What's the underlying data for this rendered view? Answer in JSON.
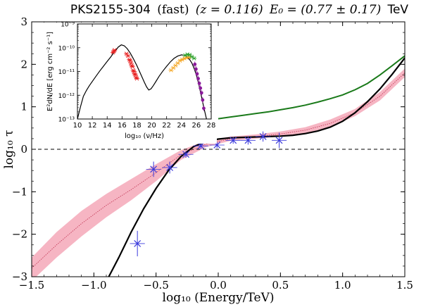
{
  "title": {
    "source": "PKS2155-304",
    "mode": "(fast)",
    "redshift": "(z = 0.116)",
    "e0": "E₀ = (0.77 ± 0.17)",
    "unit": "TeV"
  },
  "chart_data": [
    {
      "type": "line",
      "xlabel": "log₁₀ (Energy/TeV)",
      "ylabel": "log₁₀ τ",
      "xlim": [
        -1.5,
        1.5
      ],
      "ylim": [
        -3,
        3
      ],
      "xticks": [
        -1.5,
        -1.0,
        -0.5,
        0.0,
        0.5,
        1.0,
        1.5
      ],
      "xtick_labels": [
        "−1.5",
        "−1.0",
        "−0.5",
        "0.0",
        "0.5",
        "1.0",
        "1.5"
      ],
      "yticks": [
        -3,
        -2,
        -1,
        0,
        1,
        2,
        3
      ],
      "ytick_labels": [
        "−3",
        "−2",
        "−1",
        "0",
        "1",
        "2",
        "3"
      ],
      "grid": false,
      "reference_line": {
        "y": 0,
        "style": "dashed"
      },
      "band": {
        "color": "#f4a8b8",
        "x": [
          -1.5,
          -1.3,
          -1.1,
          -0.9,
          -0.7,
          -0.5,
          -0.3,
          -0.1,
          0.1,
          0.3,
          0.5,
          0.7,
          0.9,
          1.1,
          1.3,
          1.5
        ],
        "upper": [
          -2.55,
          -1.95,
          -1.45,
          -1.05,
          -0.7,
          -0.35,
          -0.02,
          0.2,
          0.3,
          0.35,
          0.42,
          0.52,
          0.7,
          0.95,
          1.35,
          1.9
        ],
        "lower": [
          -3.1,
          -2.55,
          -2.05,
          -1.6,
          -1.2,
          -0.75,
          -0.25,
          0.05,
          0.2,
          0.25,
          0.3,
          0.38,
          0.52,
          0.78,
          1.15,
          1.7
        ],
        "center_line": [
          -2.8,
          -2.25,
          -1.75,
          -1.32,
          -0.95,
          -0.55,
          -0.13,
          0.12,
          0.25,
          0.3,
          0.36,
          0.45,
          0.61,
          0.86,
          1.25,
          1.8
        ]
      },
      "series": [
        {
          "color": "#000000",
          "x": [
            -0.88,
            -0.8,
            -0.7,
            -0.6,
            -0.5,
            -0.4,
            -0.3,
            -0.2,
            -0.1,
            0.0,
            0.1,
            0.2,
            0.3,
            0.4,
            0.5,
            0.6,
            0.7,
            0.8,
            0.9,
            1.0,
            1.1,
            1.2,
            1.3,
            1.4,
            1.5
          ],
          "y": [
            -3.0,
            -2.55,
            -1.95,
            -1.4,
            -0.92,
            -0.5,
            -0.17,
            0.06,
            0.18,
            0.24,
            0.27,
            0.28,
            0.29,
            0.3,
            0.31,
            0.33,
            0.37,
            0.43,
            0.52,
            0.66,
            0.86,
            1.12,
            1.42,
            1.77,
            2.15
          ]
        },
        {
          "color": "#1a7a1a",
          "x": [
            0.0,
            0.1,
            0.2,
            0.3,
            0.4,
            0.5,
            0.6,
            0.7,
            0.8,
            0.9,
            1.0,
            1.1,
            1.2,
            1.3,
            1.4,
            1.5
          ],
          "y": [
            0.72,
            0.76,
            0.8,
            0.84,
            0.88,
            0.93,
            0.98,
            1.04,
            1.11,
            1.19,
            1.28,
            1.4,
            1.55,
            1.75,
            1.97,
            2.2
          ]
        }
      ],
      "points": {
        "color": "#3a3adc",
        "x": [
          -0.65,
          -0.52,
          -0.39,
          -0.26,
          -0.14,
          -0.01,
          0.12,
          0.24,
          0.36,
          0.49
        ],
        "y": [
          -2.22,
          -0.47,
          -0.43,
          -0.12,
          0.08,
          0.1,
          0.21,
          0.21,
          0.3,
          0.21
        ],
        "yerr": [
          0.3,
          0.18,
          0.14,
          0.08,
          0.08,
          0.07,
          0.08,
          0.1,
          0.12,
          0.18
        ],
        "xerr": [
          0.06,
          0.06,
          0.06,
          0.06,
          0.06,
          0.06,
          0.06,
          0.06,
          0.06,
          0.06
        ]
      }
    },
    {
      "type": "scatter",
      "inset": true,
      "xlabel": "log₁₀ (ν/Hz)",
      "ylabel": "E²dN/dE [erg cm⁻² s⁻¹]",
      "xlim": [
        10,
        28
      ],
      "ylim_log10": [
        -13,
        -9
      ],
      "xticks": [
        10,
        12,
        14,
        16,
        18,
        20,
        22,
        24,
        26,
        28
      ],
      "yticks_log10": [
        -13,
        -12,
        -11,
        -10,
        -9
      ],
      "ytick_labels": [
        "10⁻¹³",
        "10⁻¹²",
        "10⁻¹¹",
        "10⁻¹⁰",
        "10⁻⁹"
      ],
      "model": {
        "color": "#000000",
        "x": [
          10.0,
          10.4,
          10.8,
          11.2,
          11.6,
          12.0,
          12.5,
          13.0,
          13.5,
          14.0,
          14.5,
          15.0,
          15.5,
          15.9,
          16.3,
          16.7,
          17.1,
          17.5,
          18.0,
          18.5,
          19.0,
          19.3,
          19.6,
          19.9,
          20.2,
          20.6,
          21.0,
          21.5,
          22.0,
          22.5,
          23.0,
          23.5,
          24.0,
          24.5,
          24.8,
          25.1,
          25.4,
          25.7,
          26.0,
          26.3,
          26.6,
          27.0,
          27.4,
          27.7
        ],
        "y_log10": [
          -13.0,
          -12.5,
          -12.05,
          -11.8,
          -11.6,
          -11.42,
          -11.2,
          -10.98,
          -10.78,
          -10.58,
          -10.38,
          -10.16,
          -9.97,
          -9.88,
          -9.92,
          -10.04,
          -10.22,
          -10.45,
          -10.75,
          -11.1,
          -11.45,
          -11.65,
          -11.78,
          -11.73,
          -11.6,
          -11.4,
          -11.2,
          -10.98,
          -10.78,
          -10.6,
          -10.45,
          -10.35,
          -10.3,
          -10.33,
          -10.4,
          -10.5,
          -10.65,
          -10.87,
          -11.15,
          -11.5,
          -11.92,
          -12.5,
          -13.05,
          -13.5
        ]
      },
      "data": [
        {
          "color": "#e82020",
          "x": [
            14.8,
            14.9,
            15.0,
            16.6,
            16.8,
            17.0,
            17.1,
            17.2,
            17.3,
            17.4,
            17.5,
            17.6,
            17.7,
            17.8,
            17.9,
            18.0
          ],
          "y_log10": [
            -10.2,
            -10.15,
            -10.1,
            -10.25,
            -10.35,
            -10.5,
            -10.55,
            -10.65,
            -10.75,
            -10.8,
            -10.95,
            -11.0,
            -11.1,
            -11.15,
            -11.25,
            -11.3
          ]
        },
        {
          "color": "#f5a623",
          "x": [
            22.6,
            22.9,
            23.2,
            23.5,
            23.8,
            24.1,
            24.4,
            24.7,
            25.0
          ],
          "y_log10": [
            -10.95,
            -10.85,
            -10.75,
            -10.65,
            -10.55,
            -10.5,
            -10.45,
            -10.42,
            -10.4
          ]
        },
        {
          "color": "#2aa02a",
          "x": [
            24.5,
            24.8,
            25.1,
            25.4,
            25.7
          ],
          "y_log10": [
            -10.32,
            -10.28,
            -10.3,
            -10.38,
            -10.45
          ]
        },
        {
          "color": "#8a1a9a",
          "x": [
            25.8,
            25.95,
            26.1,
            26.25,
            26.4,
            26.55,
            26.7,
            26.85,
            27.0
          ],
          "y_log10": [
            -10.7,
            -10.9,
            -11.1,
            -11.3,
            -11.5,
            -11.7,
            -11.9,
            -12.2,
            -12.55
          ]
        }
      ]
    }
  ]
}
